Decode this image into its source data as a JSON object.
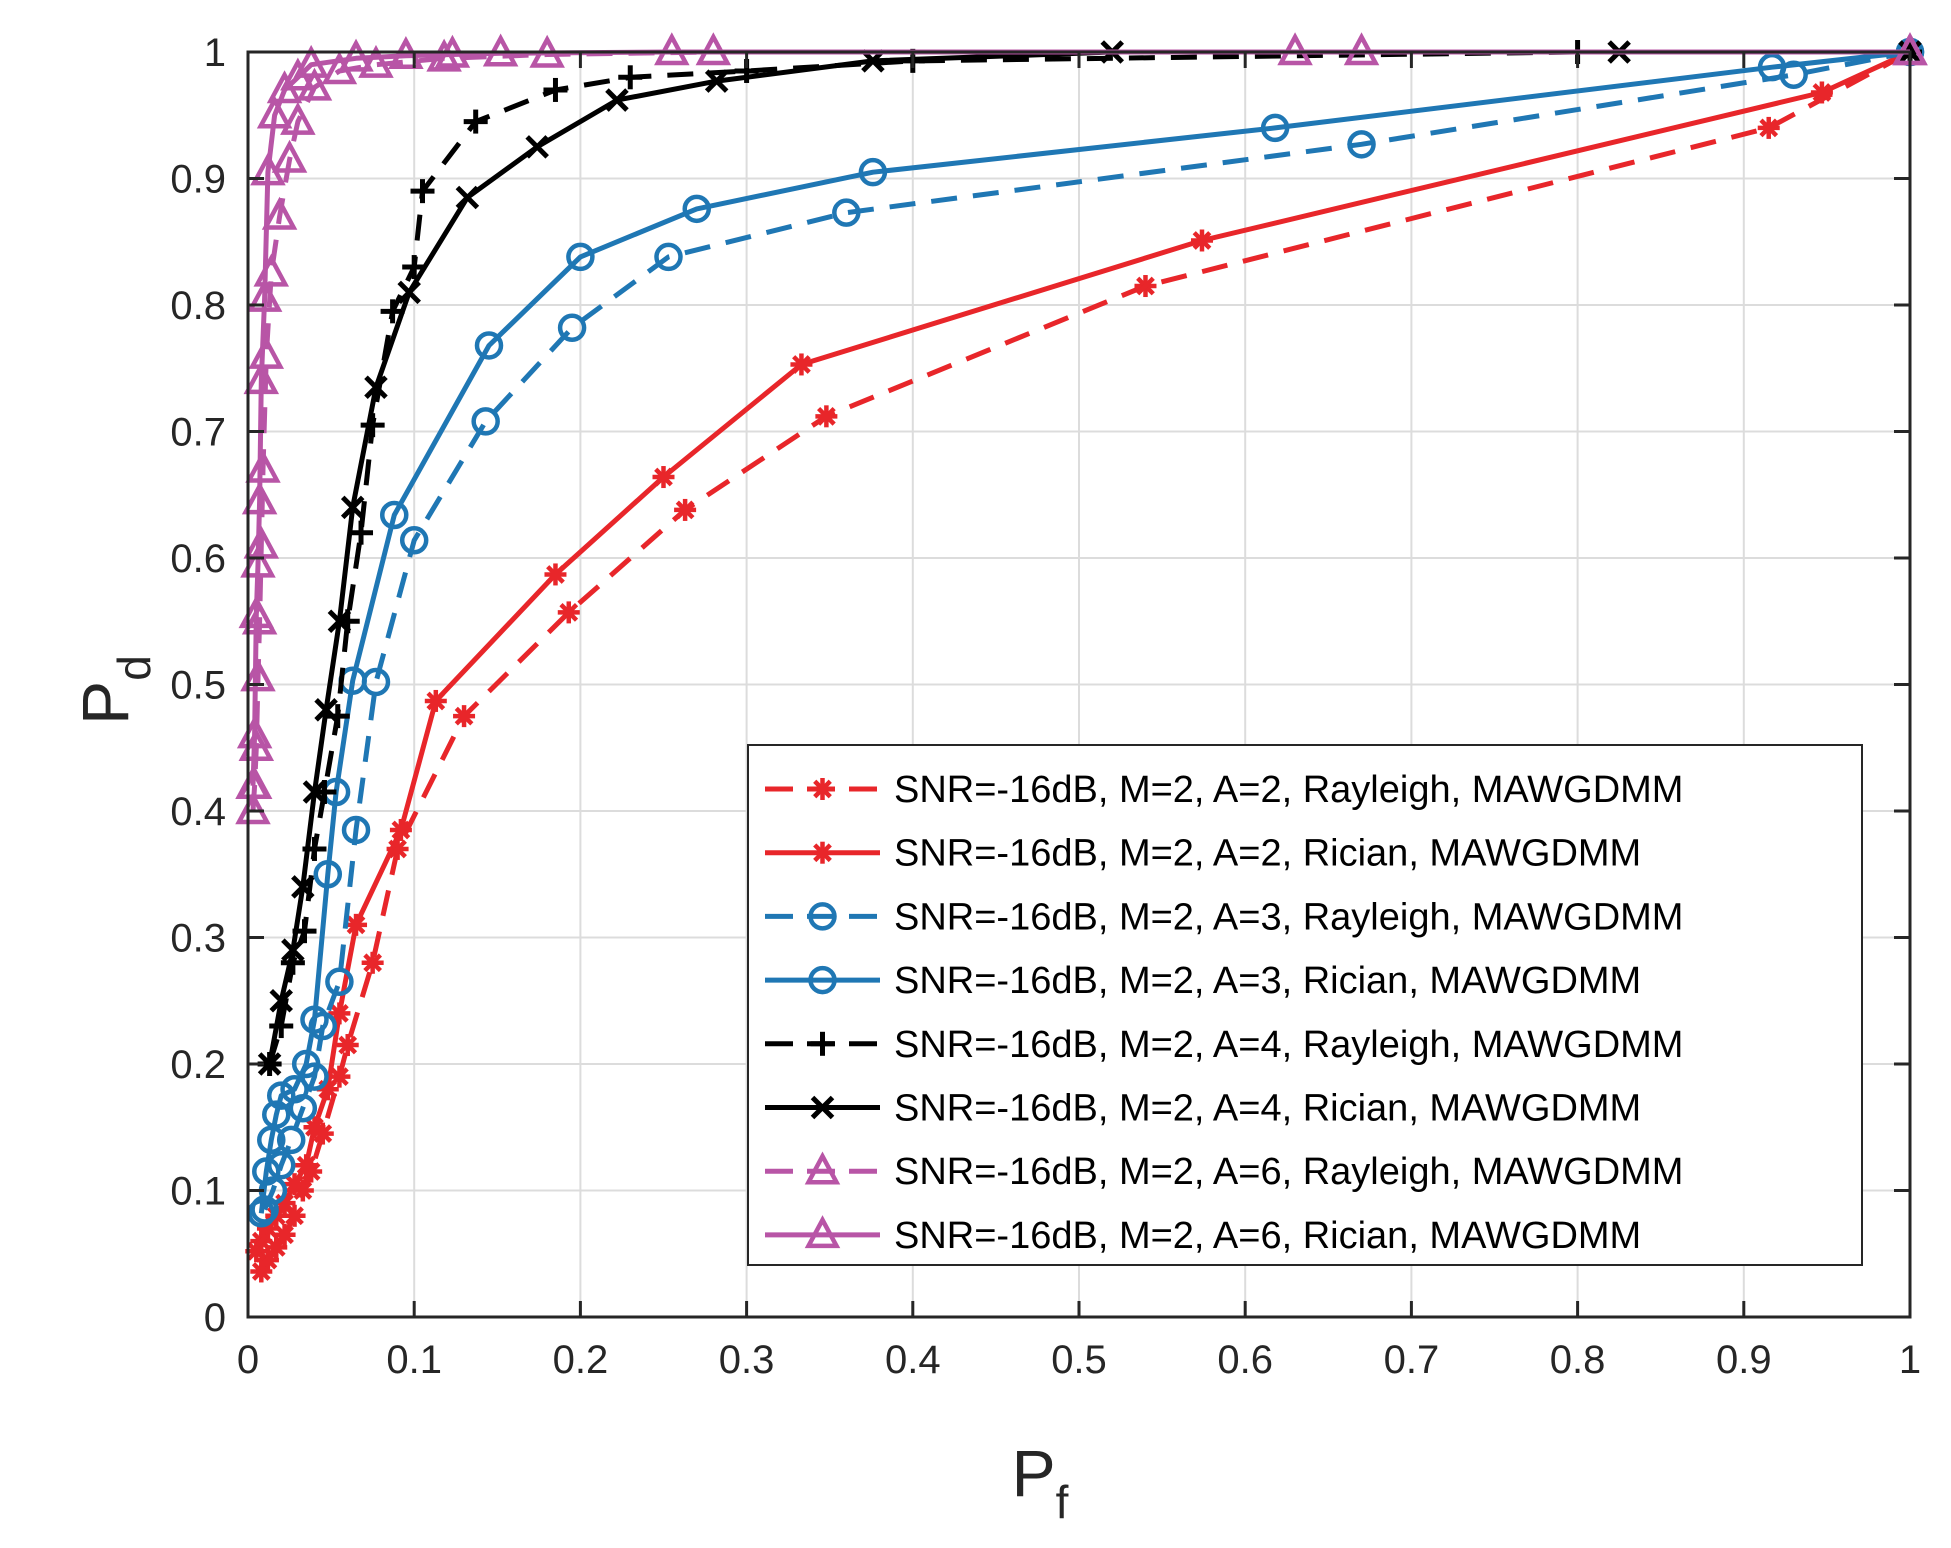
{
  "chart_data": {
    "type": "line",
    "title": "",
    "xlabel": "P",
    "xlabel_sub": "f",
    "ylabel": "P",
    "ylabel_sub": "d",
    "xlim": [
      0,
      1
    ],
    "ylim": [
      0,
      1
    ],
    "grid": true,
    "legend_position": "bottom-right",
    "x_ticks": [
      "0",
      "0.1",
      "0.2",
      "0.3",
      "0.4",
      "0.5",
      "0.6",
      "0.7",
      "0.8",
      "0.9",
      "1"
    ],
    "y_ticks": [
      "0",
      "0.1",
      "0.2",
      "0.3",
      "0.4",
      "0.5",
      "0.6",
      "0.7",
      "0.8",
      "0.9",
      "1"
    ],
    "series": [
      {
        "name": "SNR=-16dB, M=2, A=2, Rayleigh, MAWGDMM",
        "color": "#e8262a",
        "dash": "dashed",
        "marker": "asterisk",
        "x": [
          0.008,
          0.012,
          0.017,
          0.022,
          0.028,
          0.033,
          0.038,
          0.045,
          0.055,
          0.06,
          0.075,
          0.09,
          0.13,
          0.193,
          0.263,
          0.348,
          0.54,
          0.915,
          1.0
        ],
        "y": [
          0.036,
          0.045,
          0.055,
          0.065,
          0.08,
          0.1,
          0.115,
          0.145,
          0.19,
          0.215,
          0.28,
          0.37,
          0.475,
          0.557,
          0.638,
          0.712,
          0.815,
          0.94,
          1.0
        ]
      },
      {
        "name": "SNR=-16dB, M=2, A=2, Rician, MAWGDMM",
        "color": "#e8262a",
        "dash": "solid",
        "marker": "asterisk",
        "x": [
          0.005,
          0.008,
          0.012,
          0.017,
          0.022,
          0.028,
          0.035,
          0.04,
          0.048,
          0.055,
          0.065,
          0.092,
          0.113,
          0.185,
          0.25,
          0.333,
          0.574,
          0.947,
          1.0
        ],
        "y": [
          0.052,
          0.06,
          0.07,
          0.08,
          0.09,
          0.105,
          0.12,
          0.15,
          0.18,
          0.24,
          0.31,
          0.385,
          0.487,
          0.587,
          0.664,
          0.753,
          0.851,
          0.968,
          1.0
        ]
      },
      {
        "name": "SNR=-16dB, M=2, A=3, Rayleigh, MAWGDMM",
        "color": "#1f77b4",
        "dash": "dashed",
        "marker": "circle",
        "x": [
          0.01,
          0.015,
          0.02,
          0.026,
          0.033,
          0.04,
          0.045,
          0.055,
          0.065,
          0.077,
          0.1,
          0.143,
          0.195,
          0.253,
          0.36,
          0.67,
          0.93,
          1.0
        ],
        "y": [
          0.085,
          0.1,
          0.12,
          0.14,
          0.165,
          0.19,
          0.23,
          0.265,
          0.385,
          0.502,
          0.614,
          0.708,
          0.782,
          0.838,
          0.873,
          0.927,
          0.982,
          1.0
        ]
      },
      {
        "name": "SNR=-16dB, M=2, A=3, Rician, MAWGDMM",
        "color": "#1f77b4",
        "dash": "solid",
        "marker": "circle",
        "x": [
          0.008,
          0.011,
          0.014,
          0.017,
          0.02,
          0.028,
          0.035,
          0.04,
          0.048,
          0.053,
          0.063,
          0.088,
          0.145,
          0.2,
          0.27,
          0.376,
          0.618,
          0.917,
          1.0
        ],
        "y": [
          0.082,
          0.115,
          0.14,
          0.16,
          0.175,
          0.18,
          0.2,
          0.235,
          0.35,
          0.415,
          0.503,
          0.634,
          0.768,
          0.838,
          0.876,
          0.905,
          0.94,
          0.988,
          1.0
        ]
      },
      {
        "name": "SNR=-16dB, M=2, A=4, Rayleigh, MAWGDMM",
        "color": "#000000",
        "dash": "dashed",
        "marker": "plus",
        "x": [
          0.013,
          0.02,
          0.027,
          0.034,
          0.04,
          0.046,
          0.054,
          0.06,
          0.068,
          0.075,
          0.087,
          0.1,
          0.105,
          0.137,
          0.185,
          0.23,
          0.3,
          0.4,
          0.8,
          1.0
        ],
        "y": [
          0.2,
          0.23,
          0.28,
          0.305,
          0.37,
          0.415,
          0.475,
          0.55,
          0.62,
          0.705,
          0.795,
          0.83,
          0.89,
          0.945,
          0.97,
          0.98,
          0.985,
          0.993,
          1.0,
          1.0
        ]
      },
      {
        "name": "SNR=-16dB, M=2, A=4, Rician, MAWGDMM",
        "color": "#000000",
        "dash": "solid",
        "marker": "x",
        "x": [
          0.013,
          0.02,
          0.027,
          0.033,
          0.04,
          0.047,
          0.055,
          0.063,
          0.077,
          0.097,
          0.132,
          0.174,
          0.222,
          0.282,
          0.376,
          0.52,
          0.825,
          1.0
        ],
        "y": [
          0.2,
          0.25,
          0.29,
          0.34,
          0.415,
          0.48,
          0.55,
          0.64,
          0.735,
          0.81,
          0.885,
          0.925,
          0.962,
          0.977,
          0.993,
          1.0,
          1.0,
          1.0
        ]
      },
      {
        "name": "SNR=-16dB, M=2, A=6, Rayleigh, MAWGDMM",
        "color": "#b855a6",
        "dash": "dashed",
        "marker": "triangle",
        "x": [
          0.003,
          0.004,
          0.005,
          0.006,
          0.007,
          0.008,
          0.009,
          0.011,
          0.014,
          0.019,
          0.025,
          0.03,
          0.04,
          0.055,
          0.077,
          0.118,
          0.18,
          0.28,
          0.67,
          1.0
        ],
        "y": [
          0.4,
          0.42,
          0.45,
          0.505,
          0.55,
          0.61,
          0.67,
          0.76,
          0.825,
          0.87,
          0.915,
          0.945,
          0.972,
          0.985,
          0.99,
          0.995,
          0.998,
          1.0,
          1.0,
          1.0
        ]
      },
      {
        "name": "SNR=-16dB, M=2, A=6, Rician, MAWGDMM",
        "color": "#b855a6",
        "dash": "solid",
        "marker": "triangle",
        "x": [
          0.003,
          0.004,
          0.005,
          0.006,
          0.007,
          0.008,
          0.01,
          0.012,
          0.016,
          0.022,
          0.03,
          0.038,
          0.065,
          0.095,
          0.123,
          0.152,
          0.255,
          0.63,
          1.0
        ],
        "y": [
          0.42,
          0.46,
          0.555,
          0.595,
          0.645,
          0.74,
          0.805,
          0.905,
          0.95,
          0.97,
          0.98,
          0.99,
          0.995,
          0.997,
          0.998,
          0.999,
          1.0,
          1.0,
          1.0
        ]
      }
    ]
  }
}
